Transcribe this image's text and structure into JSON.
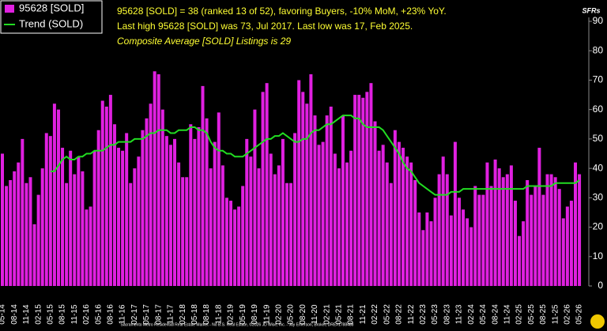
{
  "chart_data": {
    "type": "bar",
    "headline": "95628 [SOLD] = 38 (ranked 13 of 52), favoring Buyers, -10% MoM, +23% YoY.",
    "subheadline": "Last high 95628 [SOLD] was 73, Jul 2017. Last low was 17, Feb 2025.",
    "annotation": "Composite Average [SOLD] Listings is 29",
    "y_axis_label": "SFRs",
    "footer": "Sacramento Metro Residential Real Estate Market - No B.S. Real Estate, ©2026 JD Wise, Inc. - Jay Emerson, Broker, DRE#1788488",
    "categories": [
      "05-14",
      null,
      null,
      "08-14",
      null,
      null,
      "11-14",
      null,
      null,
      "02-15",
      null,
      null,
      "05-15",
      null,
      null,
      "08-15",
      null,
      null,
      "11-15",
      null,
      null,
      "02-16",
      null,
      null,
      "05-16",
      null,
      null,
      "08-16",
      null,
      null,
      "11-16",
      null,
      null,
      "02-17",
      null,
      null,
      "05-17",
      null,
      null,
      "08-17",
      null,
      null,
      "11-17",
      null,
      null,
      "02-18",
      null,
      null,
      "05-18",
      null,
      null,
      "08-18",
      null,
      null,
      "11-18",
      null,
      null,
      "02-19",
      null,
      null,
      "05-19",
      null,
      null,
      "08-19",
      null,
      null,
      "11-19",
      null,
      null,
      "02-20",
      null,
      null,
      "05-20",
      null,
      null,
      "08-20",
      null,
      null,
      "11-20",
      null,
      null,
      "02-21",
      null,
      null,
      "05-21",
      null,
      null,
      "08-21",
      null,
      null,
      "11-21",
      null,
      null,
      "02-22",
      null,
      null,
      "05-22",
      null,
      null,
      "08-22",
      null,
      null,
      "11-22",
      null,
      null,
      "02-23",
      null,
      null,
      "05-23",
      null,
      null,
      "08-23",
      null,
      null,
      "11-23",
      null,
      null,
      "02-24",
      null,
      null,
      "05-24",
      null,
      null,
      "08-24",
      null,
      null,
      "11-24",
      null,
      null,
      "02-25",
      null,
      null,
      "05-25",
      null,
      null,
      "08-25",
      null,
      null,
      "11-25",
      null,
      null,
      "02-26",
      null,
      null,
      "05-26"
    ],
    "series": [
      {
        "name": "95628 [SOLD]",
        "type": "bar",
        "color": "#e020e0",
        "values": [
          45,
          34,
          36,
          39,
          42,
          50,
          35,
          37,
          21,
          31,
          40,
          52,
          51,
          62,
          60,
          47,
          35,
          46,
          38,
          44,
          39,
          26,
          27,
          46,
          53,
          63,
          61,
          65,
          55,
          47,
          46,
          52,
          35,
          40,
          44,
          53,
          57,
          62,
          73,
          72,
          60,
          51,
          48,
          50,
          42,
          37,
          37,
          55,
          50,
          54,
          68,
          57,
          40,
          49,
          59,
          41,
          30,
          29,
          26,
          27,
          34,
          50,
          44,
          60,
          40,
          66,
          69,
          45,
          38,
          41,
          50,
          35,
          35,
          52,
          70,
          66,
          62,
          72,
          58,
          48,
          49,
          58,
          61,
          45,
          40,
          58,
          42,
          46,
          65,
          65,
          64,
          66,
          69,
          56,
          46,
          48,
          42,
          35,
          53,
          49,
          47,
          44,
          42,
          36,
          25,
          19,
          25,
          22,
          30,
          38,
          44,
          38,
          24,
          49,
          30,
          26,
          23,
          20,
          34,
          31,
          31,
          42,
          34,
          43,
          40,
          37,
          38,
          41,
          29,
          17,
          22,
          36,
          31,
          34,
          47,
          31,
          38,
          38,
          37,
          33,
          23,
          27,
          29,
          42,
          38
        ]
      },
      {
        "name": "Trend (SOLD)",
        "type": "line",
        "color": "#22dd22",
        "values": [
          null,
          null,
          null,
          null,
          null,
          null,
          null,
          null,
          null,
          null,
          null,
          null,
          39,
          39,
          41,
          43,
          44,
          43,
          43,
          44,
          44,
          45,
          45,
          46,
          46,
          46,
          47,
          48,
          48,
          49,
          49,
          49,
          49,
          50,
          50,
          50,
          51,
          52,
          52,
          53,
          53,
          53,
          52,
          52,
          53,
          53,
          53,
          54,
          54,
          53,
          53,
          52,
          49,
          47,
          46,
          46,
          45,
          45,
          44,
          44,
          44,
          45,
          46,
          47,
          48,
          49,
          50,
          50,
          51,
          51,
          52,
          51,
          50,
          49,
          49,
          50,
          50,
          52,
          53,
          53,
          54,
          55,
          55,
          56,
          57,
          58,
          58,
          58,
          57,
          57,
          55,
          54,
          54,
          54,
          54,
          53,
          51,
          49,
          47,
          45,
          42,
          40,
          39,
          37,
          35,
          34,
          33,
          32,
          31,
          31,
          31,
          31,
          32,
          32,
          32,
          33,
          33,
          33,
          33,
          33,
          33,
          33,
          33,
          33,
          33,
          33,
          33,
          33,
          33,
          33,
          33,
          34,
          34,
          34,
          34,
          34,
          34,
          34,
          35,
          35,
          35,
          35,
          35,
          35,
          36
        ]
      }
    ],
    "ylim": [
      0,
      90
    ],
    "yticks": [
      0,
      10,
      20,
      30,
      40,
      50,
      60,
      70,
      80,
      90
    ]
  }
}
